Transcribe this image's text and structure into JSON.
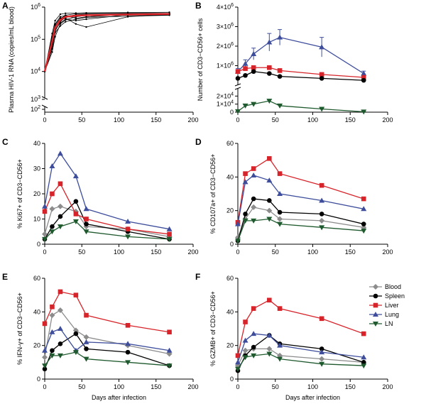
{
  "colors": {
    "Blood": "#8c8c8c",
    "Spleen": "#000000",
    "Liver": "#d7242a",
    "Lung": "#3d4d9c",
    "LN": "#1f5a2e",
    "Individual": "#000000",
    "Mean": "#e0262b"
  },
  "legend": {
    "placement": "right of panel F",
    "entries": [
      "Blood",
      "Spleen",
      "Liver",
      "Lung",
      "LN"
    ]
  },
  "chart_data": [
    {
      "panel": "A",
      "type": "line",
      "xlabel": "",
      "ylabel": "Plasma HIV-1 RNA (copies/mL blood)",
      "xlim": [
        0,
        200
      ],
      "xticks": [
        "0",
        "50",
        "100",
        "150",
        "200"
      ],
      "yscale": "log",
      "ylim": [
        100,
        1000000
      ],
      "yticks": [
        "10^2",
        "10^3",
        "10^4",
        "10^5",
        "10^6"
      ],
      "x": [
        0,
        10,
        14,
        21,
        28,
        42,
        56,
        112,
        168
      ],
      "series": [
        {
          "name": "",
          "values": [
            10000,
            90000,
            250000,
            420000,
            560000,
            620000,
            640000,
            650000,
            640000
          ]
        },
        {
          "name": "",
          "values": [
            10000,
            60000,
            180000,
            350000,
            500000,
            580000,
            600000,
            620000,
            610000
          ]
        },
        {
          "name": "",
          "values": [
            10000,
            120000,
            300000,
            500000,
            550000,
            450000,
            500000,
            600000,
            620000
          ]
        },
        {
          "name": "",
          "values": [
            10000,
            40000,
            120000,
            300000,
            400000,
            500000,
            550000,
            560000,
            570000
          ]
        },
        {
          "name": "",
          "values": [
            10000,
            80000,
            220000,
            380000,
            460000,
            300000,
            240000,
            500000,
            600000
          ]
        },
        {
          "name": "",
          "values": [
            10000,
            150000,
            380000,
            600000,
            640000,
            650000,
            660000,
            680000,
            690000
          ]
        },
        {
          "name": "",
          "values": [
            10000,
            50000,
            160000,
            260000,
            350000,
            420000,
            480000,
            520000,
            560000
          ]
        },
        {
          "name": "",
          "values": [
            10000,
            100000,
            280000,
            450000,
            520000,
            560000,
            580000,
            600000,
            600000
          ]
        },
        {
          "name": "",
          "values": [
            10000,
            70000,
            200000,
            320000,
            420000,
            380000,
            420000,
            580000,
            610000
          ]
        },
        {
          "name": "",
          "values": [
            10000,
            110000,
            260000,
            400000,
            480000,
            520000,
            560000,
            590000,
            620000
          ]
        },
        {
          "name": "mean",
          "values": [
            10000,
            85000,
            230000,
            400000,
            500000,
            540000,
            560000,
            590000,
            610000
          ]
        }
      ]
    },
    {
      "panel": "B",
      "type": "line",
      "xlabel": "",
      "ylabel": "Number of CD3−CD56+ cells",
      "xlim": [
        0,
        200
      ],
      "xticks": [
        "0",
        "50",
        "100",
        "150",
        "200"
      ],
      "axis_break": true,
      "upper_ylim": [
        0,
        4000000
      ],
      "upper_yticks": [
        "1×10^6",
        "2×10^6",
        "3×10^6",
        "4×10^6"
      ],
      "lower_ylim": [
        0,
        30000
      ],
      "lower_yticks": [
        "0",
        "1×10^4",
        "2×10^4"
      ],
      "x": [
        0,
        10,
        21,
        42,
        56,
        112,
        168
      ],
      "series": [
        {
          "name": "Lung",
          "segment": "upper",
          "values": [
            700000,
            1100000,
            1600000,
            2200000,
            2450000,
            1950000,
            600000
          ],
          "err": [
            150000,
            200000,
            300000,
            450000,
            400000,
            500000,
            120000
          ]
        },
        {
          "name": "Liver",
          "segment": "upper",
          "values": [
            700000,
            850000,
            900000,
            900000,
            750000,
            550000,
            400000
          ],
          "err": [
            50000,
            50000,
            50000,
            60000,
            50000,
            40000,
            30000
          ]
        },
        {
          "name": "Spleen",
          "segment": "upper",
          "values": [
            350000,
            500000,
            700000,
            600000,
            450000,
            350000,
            250000
          ],
          "err": [
            30000,
            40000,
            40000,
            40000,
            30000,
            30000,
            20000
          ]
        },
        {
          "name": "LN",
          "segment": "lower",
          "values": [
            1000,
            8000,
            10000,
            14000,
            8000,
            4000,
            500
          ],
          "err": [
            500,
            1000,
            1000,
            1500,
            800,
            500,
            200
          ]
        }
      ]
    },
    {
      "panel": "C",
      "type": "line",
      "xlabel": "",
      "ylabel": "% Ki67+ of CD3−CD56+",
      "xlim": [
        0,
        200
      ],
      "ylim": [
        0,
        40
      ],
      "xticks": [
        "0",
        "50",
        "100",
        "150",
        "200"
      ],
      "yticks": [
        "0",
        "10",
        "20",
        "30",
        "40"
      ],
      "x": [
        0,
        10,
        21,
        42,
        56,
        112,
        168
      ],
      "series": [
        {
          "name": "Blood",
          "values": [
            4,
            14,
            15,
            13,
            7,
            6,
            3
          ]
        },
        {
          "name": "Spleen",
          "values": [
            2,
            7,
            11,
            17,
            8,
            5,
            2
          ]
        },
        {
          "name": "Liver",
          "values": [
            13,
            20,
            24,
            12,
            10,
            6,
            4
          ]
        },
        {
          "name": "Lung",
          "values": [
            15,
            31,
            36,
            27,
            14,
            9,
            6
          ]
        },
        {
          "name": "LN",
          "values": [
            2,
            5,
            7,
            9,
            5,
            3,
            2
          ]
        }
      ]
    },
    {
      "panel": "D",
      "type": "line",
      "xlabel": "",
      "ylabel": "% CD107a+ of CD3−CD56+",
      "xlim": [
        0,
        200
      ],
      "ylim": [
        0,
        60
      ],
      "xticks": [
        "0",
        "50",
        "100",
        "150",
        "200"
      ],
      "yticks": [
        "0",
        "20",
        "40",
        "60"
      ],
      "x": [
        0,
        10,
        21,
        42,
        56,
        112,
        168
      ],
      "series": [
        {
          "name": "Blood",
          "values": [
            4,
            15,
            22,
            20,
            15,
            14,
            10
          ]
        },
        {
          "name": "Spleen",
          "values": [
            2,
            18,
            27,
            26,
            19,
            18,
            12
          ]
        },
        {
          "name": "Liver",
          "values": [
            13,
            42,
            45,
            51,
            42,
            35,
            27
          ]
        },
        {
          "name": "Lung",
          "values": [
            12,
            37,
            41,
            38,
            30,
            26,
            21
          ]
        },
        {
          "name": "LN",
          "values": [
            2,
            14,
            14,
            15,
            12,
            10,
            8
          ]
        }
      ]
    },
    {
      "panel": "E",
      "type": "line",
      "xlabel": "Days after infection",
      "ylabel": "% IFN-γ+ of CD3−CD56+",
      "xlim": [
        0,
        200
      ],
      "ylim": [
        0,
        60
      ],
      "xticks": [
        "0",
        "50",
        "100",
        "150",
        "200"
      ],
      "yticks": [
        "0",
        "20",
        "40",
        "60"
      ],
      "x": [
        0,
        10,
        21,
        42,
        56,
        112,
        168
      ],
      "series": [
        {
          "name": "Blood",
          "values": [
            13,
            38,
            41,
            29,
            25,
            20,
            15
          ]
        },
        {
          "name": "Spleen",
          "values": [
            6,
            17,
            21,
            27,
            18,
            16,
            8
          ]
        },
        {
          "name": "Liver",
          "values": [
            33,
            43,
            52,
            50,
            38,
            32,
            28
          ]
        },
        {
          "name": "Lung",
          "values": [
            17,
            28,
            30,
            17,
            22,
            21,
            17
          ]
        },
        {
          "name": "LN",
          "values": [
            8,
            14,
            14,
            16,
            12,
            10,
            8
          ]
        }
      ]
    },
    {
      "panel": "F",
      "type": "line",
      "xlabel": "Days after infection",
      "ylabel": "% GZMB+ of CD3−CD56+",
      "xlim": [
        0,
        200
      ],
      "ylim": [
        0,
        60
      ],
      "xticks": [
        "0",
        "50",
        "100",
        "150",
        "200"
      ],
      "yticks": [
        "0",
        "20",
        "40",
        "60"
      ],
      "x": [
        0,
        10,
        21,
        42,
        56,
        112,
        168
      ],
      "series": [
        {
          "name": "Blood",
          "values": [
            8,
            17,
            18,
            18,
            14,
            12,
            10
          ]
        },
        {
          "name": "Spleen",
          "values": [
            5,
            14,
            19,
            26,
            21,
            18,
            10
          ]
        },
        {
          "name": "Liver",
          "values": [
            14,
            34,
            42,
            47,
            42,
            36,
            27
          ]
        },
        {
          "name": "Lung",
          "values": [
            10,
            23,
            27,
            26,
            20,
            16,
            13
          ]
        },
        {
          "name": "LN",
          "values": [
            6,
            13,
            14,
            15,
            12,
            9,
            8
          ]
        }
      ]
    }
  ]
}
